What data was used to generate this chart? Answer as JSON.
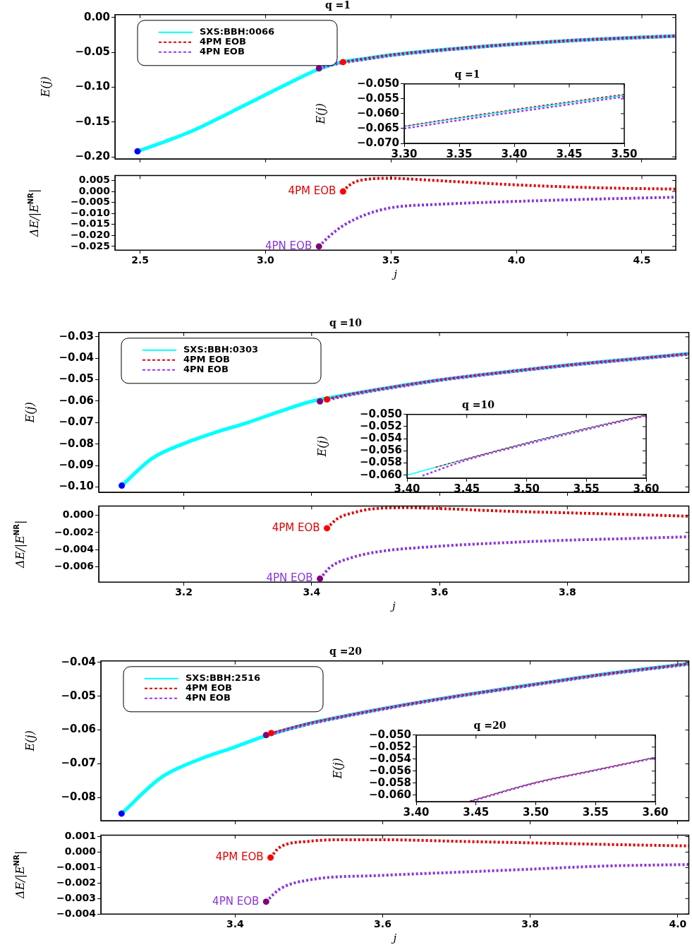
{
  "chart_data": [
    {
      "type": "line",
      "title": "q =1",
      "ylabel": "E(j)",
      "legend": "top left",
      "tick_labels": "y",
      "xlim": [
        2.4,
        4.635
      ],
      "xticks": [
        2.5,
        3,
        3.5,
        4,
        4.5
      ],
      "ylim": [
        -0.203,
        0.004
      ],
      "yticks": [
        {
          "value": 0,
          "label": "0.00"
        },
        {
          "value": -0.05,
          "label": "−0.05"
        },
        {
          "value": -0.1,
          "label": "−0.10"
        },
        {
          "value": -0.15,
          "label": "−0.15"
        },
        {
          "value": -0.2,
          "label": "−0.20"
        }
      ],
      "series": [
        {
          "name": "SXS:BBH:0066",
          "color": "#00ffff",
          "line_style": "solid",
          "x": [
            2.49,
            2.6,
            2.7,
            2.8,
            2.9,
            3.0,
            3.1,
            3.2,
            3.3,
            3.4,
            3.5,
            3.75,
            4.0,
            4.25,
            4.5,
            4.635
          ],
          "values": [
            -0.192,
            -0.178,
            -0.164,
            -0.147,
            -0.129,
            -0.111,
            -0.093,
            -0.076,
            -0.0643,
            -0.0589,
            -0.0538,
            -0.045,
            -0.038,
            -0.0325,
            -0.0285,
            -0.0265
          ]
        },
        {
          "name": "4PM EOB",
          "color": "#e00000",
          "line_style": "dashed",
          "x": [
            3.309,
            3.35,
            3.4,
            3.45,
            3.5,
            3.75,
            4.0,
            4.25,
            4.5,
            4.635
          ],
          "values": [
            -0.064,
            -0.0613,
            -0.0586,
            -0.056,
            -0.0535,
            -0.0448,
            -0.0379,
            -0.0324,
            -0.0284,
            -0.0265
          ]
        },
        {
          "name": "4PN EOB",
          "color": "#9933ff",
          "line_style": "dashed",
          "x": [
            3.213,
            3.25,
            3.3,
            3.35,
            3.4,
            3.45,
            3.5,
            3.75,
            4.0,
            4.25,
            4.5,
            4.635
          ],
          "values": [
            -0.073,
            -0.069,
            -0.065,
            -0.0622,
            -0.0595,
            -0.0569,
            -0.0543,
            -0.0453,
            -0.0382,
            -0.0326,
            -0.0286,
            -0.0266
          ]
        },
        {
          "type": "scatter",
          "marker": "circle",
          "color": "#0000ff",
          "x": [
            2.49
          ],
          "values": [
            -0.192
          ]
        },
        {
          "type": "scatter",
          "marker": "circle",
          "color": "#ff0000",
          "x": [
            3.309
          ],
          "values": [
            -0.064
          ]
        },
        {
          "type": "scatter",
          "marker": "circle",
          "color": "#800080",
          "x": [
            3.213
          ],
          "values": [
            -0.073
          ]
        }
      ]
    },
    {
      "type": "line",
      "title": "q =1",
      "ylabel": "E(j)",
      "xlim": [
        3.3,
        3.5
      ],
      "xticks": [
        {
          "value": 3.3,
          "label": "3.30"
        },
        3.35,
        {
          "value": 3.4,
          "label": "3.40"
        },
        3.45,
        {
          "value": 3.5,
          "label": "3.50"
        }
      ],
      "ylim": [
        -0.07,
        -0.05
      ],
      "yticks": [
        {
          "value": -0.05,
          "label": "−0.050"
        },
        {
          "value": -0.055,
          "label": "−0.055"
        },
        {
          "value": -0.06,
          "label": "−0.060"
        },
        {
          "value": -0.065,
          "label": "−0.065"
        },
        {
          "value": -0.07,
          "label": "−0.070"
        }
      ],
      "series": [
        {
          "color": "#00ffff",
          "line_style": "solid",
          "x": [
            3.3,
            3.35,
            3.4,
            3.45,
            3.5
          ],
          "values": [
            -0.0643,
            -0.0615,
            -0.0589,
            -0.0563,
            -0.0538
          ]
        },
        {
          "color": "#e00000",
          "line_style": "dashed",
          "x": [
            3.3,
            3.35,
            3.4,
            3.45,
            3.5
          ],
          "values": [
            -0.0642,
            -0.0613,
            -0.0586,
            -0.056,
            -0.0535
          ]
        },
        {
          "color": "#9933ff",
          "line_style": "dashed",
          "x": [
            3.3,
            3.35,
            3.4,
            3.45,
            3.5
          ],
          "values": [
            -0.065,
            -0.0622,
            -0.0595,
            -0.0569,
            -0.0543
          ]
        }
      ]
    },
    {
      "type": "line",
      "xlabel": "j",
      "ylabel": "ΔE/|E$^{NR}$|",
      "xlim": [
        2.4,
        4.635
      ],
      "xticks": [
        2.5,
        {
          "value": 3,
          "label": "3.0"
        },
        3.5,
        {
          "value": 4,
          "label": "4.0"
        },
        4.5
      ],
      "ylim": [
        -0.0267,
        0.0073
      ],
      "yticks": [
        0.005,
        {
          "value": 0,
          "label": "0.000"
        },
        {
          "value": -0.005,
          "label": "−0.005"
        },
        {
          "value": -0.01,
          "label": "−0.010"
        },
        {
          "value": -0.015,
          "label": "−0.015"
        },
        {
          "value": -0.02,
          "label": "−0.020"
        },
        {
          "value": -0.025,
          "label": "−0.025"
        }
      ],
      "series": [
        {
          "name": "4PM EOB",
          "color": "#e00000",
          "line_style": "dashed",
          "x": [
            3.309,
            3.33,
            3.36,
            3.4,
            3.5,
            3.6,
            3.8,
            4.0,
            4.2,
            4.4,
            4.635
          ],
          "values": [
            0,
            0.0025,
            0.0045,
            0.0055,
            0.006,
            0.0055,
            0.0042,
            0.003,
            0.0021,
            0.0015,
            0.0011
          ]
        },
        {
          "name": "4PN EOB",
          "color": "#8833dd",
          "line_style": "dashed",
          "x": [
            3.213,
            3.26,
            3.31,
            3.4,
            3.5,
            3.7,
            4.0,
            4.3,
            4.635
          ],
          "values": [
            -0.025,
            -0.0198,
            -0.0155,
            -0.0105,
            -0.0074,
            -0.0058,
            -0.0045,
            -0.0035,
            -0.0026
          ]
        },
        {
          "type": "scatter",
          "marker": "circle",
          "color": "#ff0000",
          "x": [
            3.309
          ],
          "values": [
            0
          ]
        },
        {
          "type": "scatter",
          "marker": "circle",
          "color": "#800080",
          "x": [
            3.213
          ],
          "values": [
            -0.025
          ]
        }
      ]
    },
    {
      "type": "line",
      "title": "q =10",
      "ylabel": "E(j)",
      "legend": "top left",
      "tick_labels": "y",
      "xlim": [
        3.067,
        3.99
      ],
      "xticks": [
        3.2,
        3.4,
        3.6,
        3.8
      ],
      "ylim": [
        -0.1025,
        -0.028
      ],
      "yticks": [
        {
          "value": -0.03,
          "label": "−0.03"
        },
        {
          "value": -0.04,
          "label": "−0.04"
        },
        {
          "value": -0.05,
          "label": "−0.05"
        },
        {
          "value": -0.06,
          "label": "−0.06"
        },
        {
          "value": -0.07,
          "label": "−0.07"
        },
        {
          "value": -0.08,
          "label": "−0.08"
        },
        {
          "value": -0.09,
          "label": "−0.09"
        },
        {
          "value": -0.1,
          "label": "−0.10"
        }
      ],
      "series": [
        {
          "name": "SXS:BBH:0303",
          "color": "#00ffff",
          "line_style": "solid",
          "x": [
            3.103,
            3.15,
            3.2,
            3.25,
            3.3,
            3.35,
            3.4,
            3.45,
            3.5,
            3.55,
            3.6,
            3.7,
            3.8,
            3.9,
            3.99
          ],
          "values": [
            -0.0994,
            -0.0868,
            -0.0798,
            -0.0745,
            -0.07,
            -0.0648,
            -0.0601,
            -0.0573,
            -0.0547,
            -0.0523,
            -0.0501,
            -0.0465,
            -0.0432,
            -0.0404,
            -0.0379
          ]
        },
        {
          "name": "4PM EOB",
          "color": "#e00000",
          "line_style": "dashed",
          "x": [
            3.424,
            3.45,
            3.5,
            3.55,
            3.6,
            3.7,
            3.8,
            3.9,
            3.99
          ],
          "values": [
            -0.0592,
            -0.0573,
            -0.0547,
            -0.0523,
            -0.0501,
            -0.0465,
            -0.0432,
            -0.0404,
            -0.0379
          ]
        },
        {
          "name": "4PN EOB",
          "color": "#9933ff",
          "line_style": "dashed",
          "x": [
            3.413,
            3.45,
            3.5,
            3.55,
            3.6,
            3.7,
            3.8,
            3.9,
            3.99
          ],
          "values": [
            -0.0601,
            -0.0576,
            -0.0549,
            -0.0525,
            -0.0502,
            -0.0466,
            -0.0433,
            -0.0405,
            -0.038
          ]
        },
        {
          "type": "scatter",
          "marker": "circle",
          "color": "#0000ff",
          "x": [
            3.103
          ],
          "values": [
            -0.0994
          ]
        },
        {
          "type": "scatter",
          "marker": "circle",
          "color": "#ff0000",
          "x": [
            3.424
          ],
          "values": [
            -0.0592
          ]
        },
        {
          "type": "scatter",
          "marker": "circle",
          "color": "#800080",
          "x": [
            3.413
          ],
          "values": [
            -0.0601
          ]
        }
      ]
    },
    {
      "type": "line",
      "title": "q =10",
      "ylabel": "E(j)",
      "xlim": [
        3.4,
        3.6
      ],
      "xticks": [
        {
          "value": 3.4,
          "label": "3.40"
        },
        3.45,
        {
          "value": 3.5,
          "label": "3.50"
        },
        3.55,
        {
          "value": 3.6,
          "label": "3.60"
        }
      ],
      "ylim": [
        -0.0605,
        -0.05
      ],
      "yticks": [
        {
          "value": -0.05,
          "label": "−0.050"
        },
        {
          "value": -0.052,
          "label": "−0.052"
        },
        {
          "value": -0.054,
          "label": "−0.054"
        },
        {
          "value": -0.056,
          "label": "−0.056"
        },
        {
          "value": -0.058,
          "label": "−0.058"
        },
        {
          "value": -0.06,
          "label": "−0.060"
        }
      ],
      "series": [
        {
          "color": "#00ffff",
          "line_style": "solid",
          "x": [
            3.4,
            3.45,
            3.5,
            3.55,
            3.6
          ],
          "values": [
            -0.06,
            -0.0573,
            -0.0547,
            -0.0523,
            -0.0501
          ]
        },
        {
          "color": "#e00000",
          "line_style": "dashed",
          "x": [
            3.424,
            3.45,
            3.5,
            3.55,
            3.6
          ],
          "values": [
            -0.0587,
            -0.0573,
            -0.0547,
            -0.0523,
            -0.0501
          ]
        },
        {
          "color": "#9933ff",
          "line_style": "dashed",
          "x": [
            3.413,
            3.45,
            3.5,
            3.55,
            3.6
          ],
          "values": [
            -0.0601,
            -0.0575,
            -0.0549,
            -0.0525,
            -0.0502
          ]
        }
      ]
    },
    {
      "type": "line",
      "xlabel": "j",
      "ylabel": "ΔE/|E$^{NR}$|",
      "xlim": [
        3.067,
        3.99
      ],
      "xticks": [
        3.2,
        3.4,
        3.6,
        3.8
      ],
      "ylim": [
        -0.0078,
        0.0011
      ],
      "yticks": [
        {
          "value": 0,
          "label": "0.000"
        },
        {
          "value": -0.002,
          "label": "−0.002"
        },
        {
          "value": -0.004,
          "label": "−0.004"
        },
        {
          "value": -0.006,
          "label": "−0.006"
        }
      ],
      "series": [
        {
          "name": "4PM EOB",
          "color": "#e00000",
          "line_style": "dashed",
          "x": [
            3.424,
            3.44,
            3.47,
            3.5,
            3.55,
            3.6,
            3.7,
            3.8,
            3.9,
            3.99
          ],
          "values": [
            -0.0015,
            -0.0004,
            0.0004,
            0.0008,
            0.0009,
            0.0008,
            0.0005,
            0.0003,
            0.0001,
            -0.0001
          ]
        },
        {
          "name": "4PN EOB",
          "color": "#8833dd",
          "line_style": "dashed",
          "x": [
            3.413,
            3.43,
            3.46,
            3.5,
            3.6,
            3.7,
            3.8,
            3.9,
            3.99
          ],
          "values": [
            -0.0074,
            -0.006,
            -0.005,
            -0.0043,
            -0.0036,
            -0.0032,
            -0.0029,
            -0.0027,
            -0.0025
          ]
        },
        {
          "type": "scatter",
          "marker": "circle",
          "color": "#ff0000",
          "x": [
            3.424
          ],
          "values": [
            -0.0015
          ]
        },
        {
          "type": "scatter",
          "marker": "circle",
          "color": "#800080",
          "x": [
            3.413
          ],
          "values": [
            -0.0074
          ]
        }
      ]
    },
    {
      "type": "line",
      "title": "q =20",
      "ylabel": "E(j)",
      "legend": "top left",
      "tick_labels": "y",
      "xlim": [
        3.218,
        4.015
      ],
      "xticks": [
        3.4,
        3.6,
        3.8,
        4
      ],
      "ylim": [
        -0.0868,
        -0.0396
      ],
      "yticks": [
        {
          "value": -0.04,
          "label": "−0.04"
        },
        {
          "value": -0.05,
          "label": "−0.05"
        },
        {
          "value": -0.06,
          "label": "−0.06"
        },
        {
          "value": -0.07,
          "label": "−0.07"
        },
        {
          "value": -0.08,
          "label": "−0.08"
        }
      ],
      "series": [
        {
          "name": "SXS:BBH:2516",
          "color": "#00ffff",
          "line_style": "solid",
          "x": [
            3.246,
            3.3,
            3.35,
            3.4,
            3.442,
            3.5,
            3.55,
            3.6,
            3.7,
            3.8,
            3.9,
            4.015
          ],
          "values": [
            -0.0847,
            -0.074,
            -0.0688,
            -0.065,
            -0.0617,
            -0.0581,
            -0.0558,
            -0.0537,
            -0.05,
            -0.0467,
            -0.0435,
            -0.0404
          ]
        },
        {
          "name": "4PM EOB",
          "color": "#e00000",
          "line_style": "dashed",
          "x": [
            3.449,
            3.5,
            3.55,
            3.6,
            3.7,
            3.8,
            3.9,
            4.015
          ],
          "values": [
            -0.0609,
            -0.058,
            -0.0558,
            -0.0537,
            -0.05,
            -0.0467,
            -0.0435,
            -0.0404
          ]
        },
        {
          "name": "4PN EOB",
          "color": "#9933ff",
          "line_style": "dashed",
          "x": [
            3.442,
            3.5,
            3.55,
            3.6,
            3.7,
            3.8,
            3.9,
            4.015
          ],
          "values": [
            -0.0615,
            -0.0582,
            -0.0559,
            -0.0538,
            -0.0501,
            -0.0468,
            -0.0436,
            -0.0405
          ]
        },
        {
          "type": "scatter",
          "marker": "circle",
          "color": "#0000ff",
          "x": [
            3.246
          ],
          "values": [
            -0.0847
          ]
        },
        {
          "type": "scatter",
          "marker": "circle",
          "color": "#ff0000",
          "x": [
            3.449
          ],
          "values": [
            -0.0609
          ]
        },
        {
          "type": "scatter",
          "marker": "circle",
          "color": "#800080",
          "x": [
            3.442
          ],
          "values": [
            -0.0615
          ]
        }
      ]
    },
    {
      "type": "line",
      "title": "q =20",
      "ylabel": "E(j)",
      "xlim": [
        3.4,
        3.6
      ],
      "xticks": [
        {
          "value": 3.4,
          "label": "3.40"
        },
        3.45,
        {
          "value": 3.5,
          "label": "3.50"
        },
        3.55,
        {
          "value": 3.6,
          "label": "3.60"
        }
      ],
      "ylim": [
        -0.0611,
        -0.05
      ],
      "yticks": [
        {
          "value": -0.05,
          "label": "−0.050"
        },
        {
          "value": -0.052,
          "label": "−0.052"
        },
        {
          "value": -0.054,
          "label": "−0.054"
        },
        {
          "value": -0.056,
          "label": "−0.056"
        },
        {
          "value": -0.058,
          "label": "−0.058"
        },
        {
          "value": -0.06,
          "label": "−0.060"
        }
      ],
      "series": [
        {
          "color": "#00ffff",
          "line_style": "solid",
          "x": [
            3.445,
            3.5,
            3.55,
            3.6
          ],
          "values": [
            -0.061,
            -0.0579,
            -0.0558,
            -0.0537
          ]
        },
        {
          "color": "#e00000",
          "line_style": "dashed",
          "x": [
            3.445,
            3.5,
            3.55,
            3.6
          ],
          "values": [
            -0.061,
            -0.0579,
            -0.0558,
            -0.0537
          ]
        },
        {
          "color": "#9933ff",
          "line_style": "dashed",
          "x": [
            3.447,
            3.5,
            3.55,
            3.6
          ],
          "values": [
            -0.061,
            -0.058,
            -0.0559,
            -0.0538
          ]
        }
      ]
    },
    {
      "type": "line",
      "xlabel": "j",
      "ylabel": "ΔE/|E$^{NR}$|",
      "xlim": [
        3.218,
        4.015
      ],
      "xticks": [
        3.4,
        3.6,
        3.8,
        {
          "value": 4,
          "label": "4.0"
        }
      ],
      "ylim": [
        -0.004,
        0.0011
      ],
      "yticks": [
        0.001,
        {
          "value": 0,
          "label": "0.000"
        },
        {
          "value": -0.001,
          "label": "−0.001"
        },
        {
          "value": -0.002,
          "label": "−0.002"
        },
        {
          "value": -0.003,
          "label": "−0.003"
        },
        {
          "value": -0.004,
          "label": "−0.004"
        }
      ],
      "series": [
        {
          "name": "4PM EOB",
          "color": "#e00000",
          "line_style": "dashed",
          "x": [
            3.448,
            3.46,
            3.5,
            3.55,
            3.6,
            3.7,
            3.8,
            3.9,
            4.015
          ],
          "values": [
            -0.00035,
            0.0003,
            0.0007,
            0.0008,
            0.0008,
            0.0007,
            0.0006,
            0.0005,
            0.0004
          ]
        },
        {
          "name": "4PN EOB",
          "color": "#8833dd",
          "line_style": "dashed",
          "x": [
            3.442,
            3.46,
            3.5,
            3.6,
            3.7,
            3.8,
            3.9,
            4.015
          ],
          "values": [
            -0.0032,
            -0.0024,
            -0.0018,
            -0.0015,
            -0.0013,
            -0.0011,
            -0.0009,
            -0.0008
          ]
        },
        {
          "type": "scatter",
          "marker": "circle",
          "color": "#ff0000",
          "x": [
            3.448
          ],
          "values": [
            -0.00035
          ]
        },
        {
          "type": "scatter",
          "marker": "circle",
          "color": "#800080",
          "x": [
            3.442
          ],
          "values": [
            -0.0032
          ]
        }
      ]
    }
  ]
}
